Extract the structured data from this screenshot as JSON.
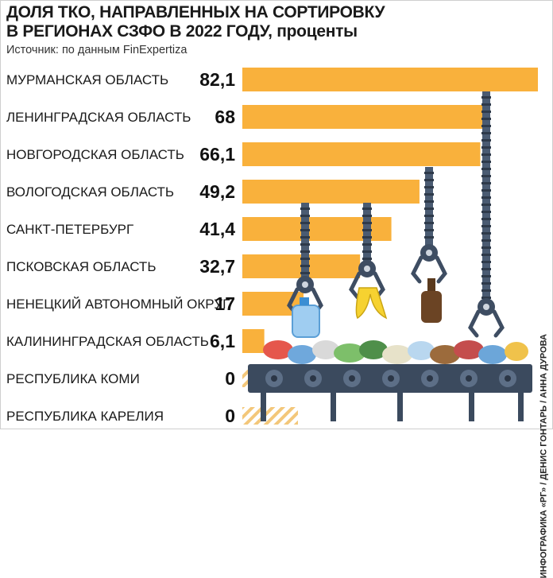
{
  "title_line1": "ДОЛЯ ТКО, НАПРАВЛЕННЫХ НА СОРТИРОВКУ",
  "title_line2": "В РЕГИОНАХ СЗФО В 2022 ГОДУ,",
  "title_unit": "проценты",
  "source": "Источник: по данным FinExpertiza",
  "credit": "ИНФОГРАФИКА «РГ» / ДЕНИС ГОНТАРЬ / АННА ДУРОВА",
  "colors": {
    "bar": "#f9b13c",
    "zero_hatch": "#f3c77a",
    "conveyor": "#3b4a5e",
    "arm": "#4a5b72"
  },
  "chart_data": {
    "type": "bar",
    "orientation": "horizontal",
    "categories": [
      "МУРМАНСКАЯ ОБЛАСТЬ",
      "ЛЕНИНГРАДСКАЯ ОБЛАСТЬ",
      "НОВГОРОДСКАЯ ОБЛАСТЬ",
      "ВОЛОГОДСКАЯ ОБЛАСТЬ",
      "САНКТ-ПЕТЕРБУРГ",
      "ПСКОВСКАЯ ОБЛАСТЬ",
      "НЕНЕЦКИЙ АВТОНОМНЫЙ ОКРУГ",
      "КАЛИНИНГРАДСКАЯ ОБЛАСТЬ",
      "РЕСПУБЛИКА КОМИ",
      "РЕСПУБЛИКА КАРЕЛИЯ"
    ],
    "values": [
      82.1,
      68,
      66.1,
      49.2,
      41.4,
      32.7,
      17,
      6.1,
      0,
      0
    ],
    "value_labels": [
      "82,1",
      "68",
      "66,1",
      "49,2",
      "41,4",
      "32,7",
      "17",
      "6,1",
      "0",
      "0"
    ],
    "xlim": [
      0,
      82.1
    ],
    "grid": false,
    "legend": "none"
  }
}
